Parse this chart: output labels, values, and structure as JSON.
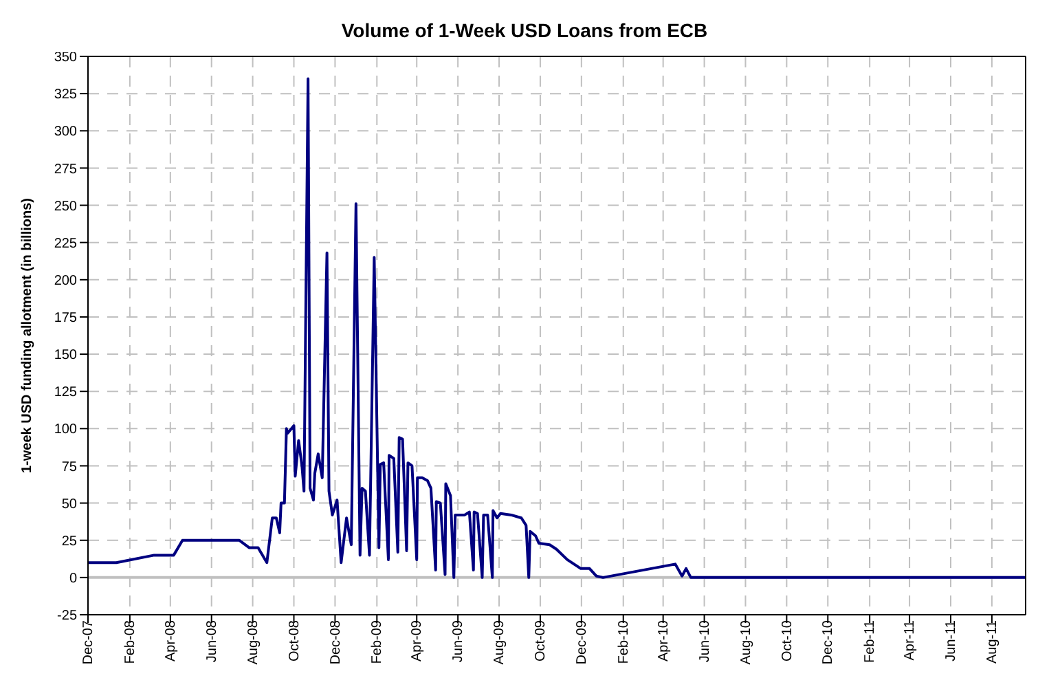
{
  "chart_data": {
    "type": "line",
    "title": "Volume of 1-Week USD Loans from ECB",
    "ylabel": "1-week USD funding allotment (in billions)",
    "x": [
      "2007-12-01",
      "2008-01-12",
      "2008-03-08",
      "2008-04-06",
      "2008-04-19",
      "2008-07-12",
      "2008-07-27",
      "2008-08-09",
      "2008-08-22",
      "2008-08-30",
      "2008-09-05",
      "2008-09-10",
      "2008-09-12",
      "2008-09-17",
      "2008-09-20",
      "2008-09-22",
      "2008-10-01",
      "2008-10-03",
      "2008-10-08",
      "2008-10-13",
      "2008-10-16",
      "2008-10-22",
      "2008-10-25",
      "2008-10-30",
      "2008-11-01",
      "2008-11-06",
      "2008-11-12",
      "2008-11-19",
      "2008-11-22",
      "2008-11-27",
      "2008-12-04",
      "2008-12-10",
      "2008-12-18",
      "2008-12-25",
      "2009-01-01",
      "2009-01-07",
      "2009-01-10",
      "2009-01-15",
      "2009-01-21",
      "2009-01-28",
      "2009-02-04",
      "2009-02-06",
      "2009-02-11",
      "2009-02-18",
      "2009-02-19",
      "2009-02-26",
      "2009-03-04",
      "2009-03-06",
      "2009-03-11",
      "2009-03-17",
      "2009-03-19",
      "2009-03-25",
      "2009-04-01",
      "2009-04-02",
      "2009-04-09",
      "2009-04-17",
      "2009-04-22",
      "2009-04-29",
      "2009-04-30",
      "2009-05-06",
      "2009-05-13",
      "2009-05-14",
      "2009-05-21",
      "2009-05-26",
      "2009-05-28",
      "2009-06-11",
      "2009-06-18",
      "2009-06-24",
      "2009-06-25",
      "2009-06-30",
      "2009-07-07",
      "2009-07-09",
      "2009-07-15",
      "2009-07-22",
      "2009-07-23",
      "2009-07-29",
      "2009-08-03",
      "2009-08-19",
      "2009-09-03",
      "2009-09-10",
      "2009-09-14",
      "2009-09-16",
      "2009-09-24",
      "2009-09-29",
      "2009-10-15",
      "2009-10-25",
      "2009-11-10",
      "2009-11-30",
      "2009-12-13",
      "2009-12-23",
      "2010-01-02",
      "2010-04-19",
      "2010-04-29",
      "2010-05-05",
      "2010-05-12",
      "2011-09-19"
    ],
    "series": [
      {
        "color": "#000080",
        "values": [
          10,
          10,
          15,
          15,
          25,
          25,
          20,
          20,
          10,
          40,
          40,
          30,
          50,
          50,
          100,
          97,
          102,
          68,
          92,
          75,
          58,
          335,
          60,
          52,
          70,
          83,
          67,
          218,
          58,
          42,
          52,
          10,
          40,
          22,
          251,
          15,
          60,
          58,
          15,
          215,
          20,
          76,
          77,
          12,
          82,
          80,
          17,
          94,
          93,
          18,
          77,
          75,
          12,
          67,
          67,
          65,
          60,
          5,
          51,
          50,
          2,
          63,
          55,
          0,
          42,
          42,
          44,
          5,
          44,
          43,
          0,
          42,
          42,
          0,
          45,
          40,
          43,
          42,
          40,
          35,
          0,
          31,
          28,
          23,
          22,
          19,
          12,
          6,
          6,
          1,
          0,
          9,
          1,
          6,
          0,
          0
        ]
      }
    ],
    "xlim": [
      "2007-12-01",
      "2011-09-20"
    ],
    "xticks": [
      {
        "value": "2007-12-01",
        "label": "Dec-07"
      },
      {
        "value": "2008-02-01",
        "label": "Feb-08"
      },
      {
        "value": "2008-04-01",
        "label": "Apr-08"
      },
      {
        "value": "2008-06-01",
        "label": "Jun-08"
      },
      {
        "value": "2008-08-01",
        "label": "Aug-08"
      },
      {
        "value": "2008-10-01",
        "label": "Oct-08"
      },
      {
        "value": "2008-12-01",
        "label": "Dec-08"
      },
      {
        "value": "2009-02-01",
        "label": "Feb-09"
      },
      {
        "value": "2009-04-01",
        "label": "Apr-09"
      },
      {
        "value": "2009-06-01",
        "label": "Jun-09"
      },
      {
        "value": "2009-08-01",
        "label": "Aug-09"
      },
      {
        "value": "2009-10-01",
        "label": "Oct-09"
      },
      {
        "value": "2009-12-01",
        "label": "Dec-09"
      },
      {
        "value": "2010-02-01",
        "label": "Feb-10"
      },
      {
        "value": "2010-04-01",
        "label": "Apr-10"
      },
      {
        "value": "2010-06-01",
        "label": "Jun-10"
      },
      {
        "value": "2010-08-01",
        "label": "Aug-10"
      },
      {
        "value": "2010-10-01",
        "label": "Oct-10"
      },
      {
        "value": "2010-12-01",
        "label": "Dec-10"
      },
      {
        "value": "2011-02-01",
        "label": "Feb-11"
      },
      {
        "value": "2011-04-01",
        "label": "Apr-11"
      },
      {
        "value": "2011-06-01",
        "label": "Jun-11"
      },
      {
        "value": "2011-08-01",
        "label": "Aug-11"
      }
    ],
    "ylim": [
      -25,
      350
    ],
    "yticks": [
      -25,
      0,
      25,
      50,
      75,
      100,
      125,
      150,
      175,
      200,
      225,
      250,
      275,
      300,
      325,
      350
    ],
    "ref_lines": [
      {
        "axis": "y",
        "value": 0,
        "color": "#c0c0c0"
      }
    ],
    "grid": true,
    "legend": false,
    "marker": "none",
    "line_style": "solid"
  }
}
